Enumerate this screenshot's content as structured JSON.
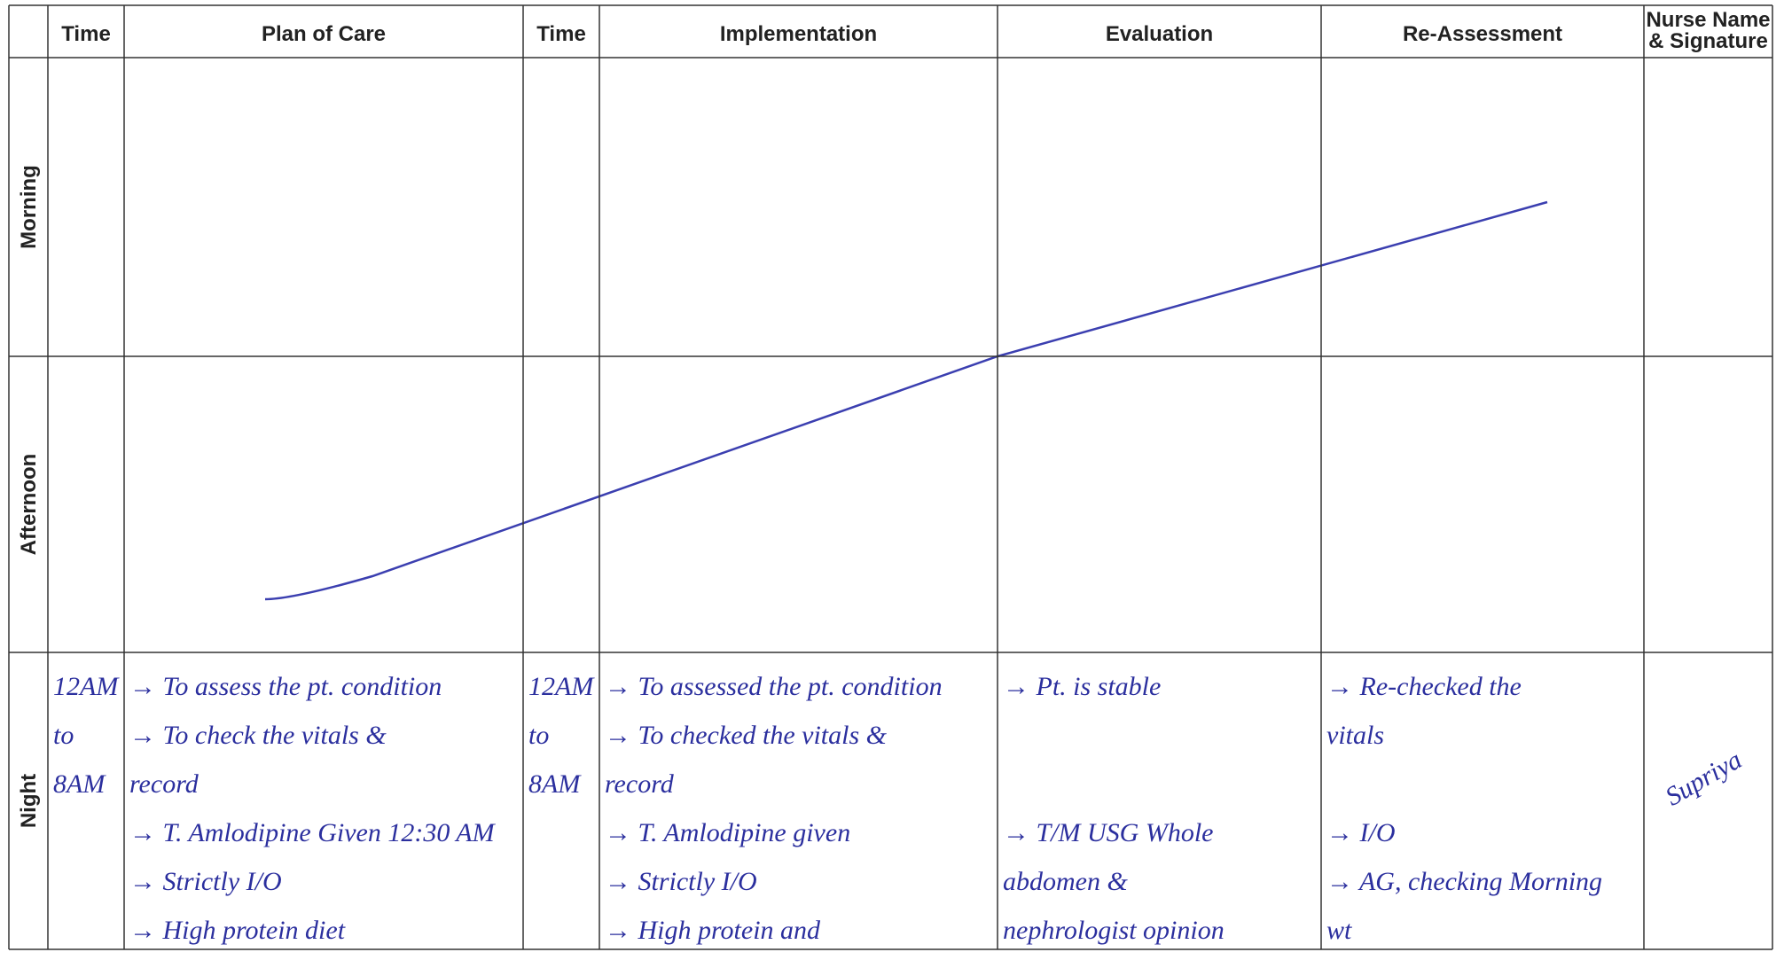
{
  "header": [
    "Time",
    "Plan of Care",
    "Time",
    "Implementation",
    "Evaluation",
    "Re-Assessment",
    [
      "Nurse Name",
      "& Signature"
    ]
  ],
  "rows": [
    {
      "label": "Morning"
    },
    {
      "label": "Afternoon"
    },
    {
      "label": "Night",
      "cells": [
        [
          "12AM",
          "to",
          "8AM"
        ],
        [
          "→ To assess the pt. condition",
          "→ To check the vitals &",
          "record",
          "→ T. Amlodipine Given 12:30 AM",
          "→ Strictly I/O",
          "→ High protein diet"
        ],
        [
          "12AM",
          "to",
          "8AM"
        ],
        [
          "→ To assessed the pt. condition",
          "→ To checked the vitals &",
          "record",
          "→ T. Amlodipine given",
          "→ Strictly I/O",
          "→ High protein and"
        ],
        [
          "→ Pt. is stable",
          "",
          "",
          "→ T/M USG Whole",
          "abdomen &",
          "nephrologist opinion"
        ],
        [
          "→ Re-checked the",
          "vitals",
          "",
          "→ I/O",
          "→ AG, checking Morning",
          "wt"
        ],
        [
          "Supriya"
        ]
      ]
    }
  ]
}
